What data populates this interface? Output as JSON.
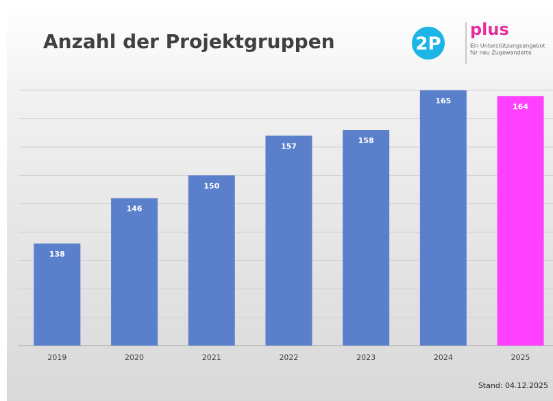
{
  "chart_data": {
    "type": "bar",
    "title": "Anzahl der Projektgruppen",
    "categories": [
      "2019",
      "2020",
      "2021",
      "2022",
      "2023",
      "2024",
      "2025"
    ],
    "values": [
      138,
      146,
      150,
      157,
      158,
      165,
      164
    ],
    "colors": [
      "#5b80cb",
      "#5b80cb",
      "#5b80cb",
      "#5b80cb",
      "#5b80cb",
      "#5b80cb",
      "#ff40ff"
    ],
    "ylim": [
      120,
      165
    ],
    "yticks": [
      120,
      125,
      130,
      135,
      140,
      145,
      150,
      155,
      160,
      165
    ],
    "grid": true,
    "note": "Stand: 04.12.2025"
  },
  "logo": {
    "mark": "2P",
    "name": "plus",
    "tagline": [
      "Ein Unterstützungsangebot",
      "für neu Zugewanderte"
    ]
  }
}
